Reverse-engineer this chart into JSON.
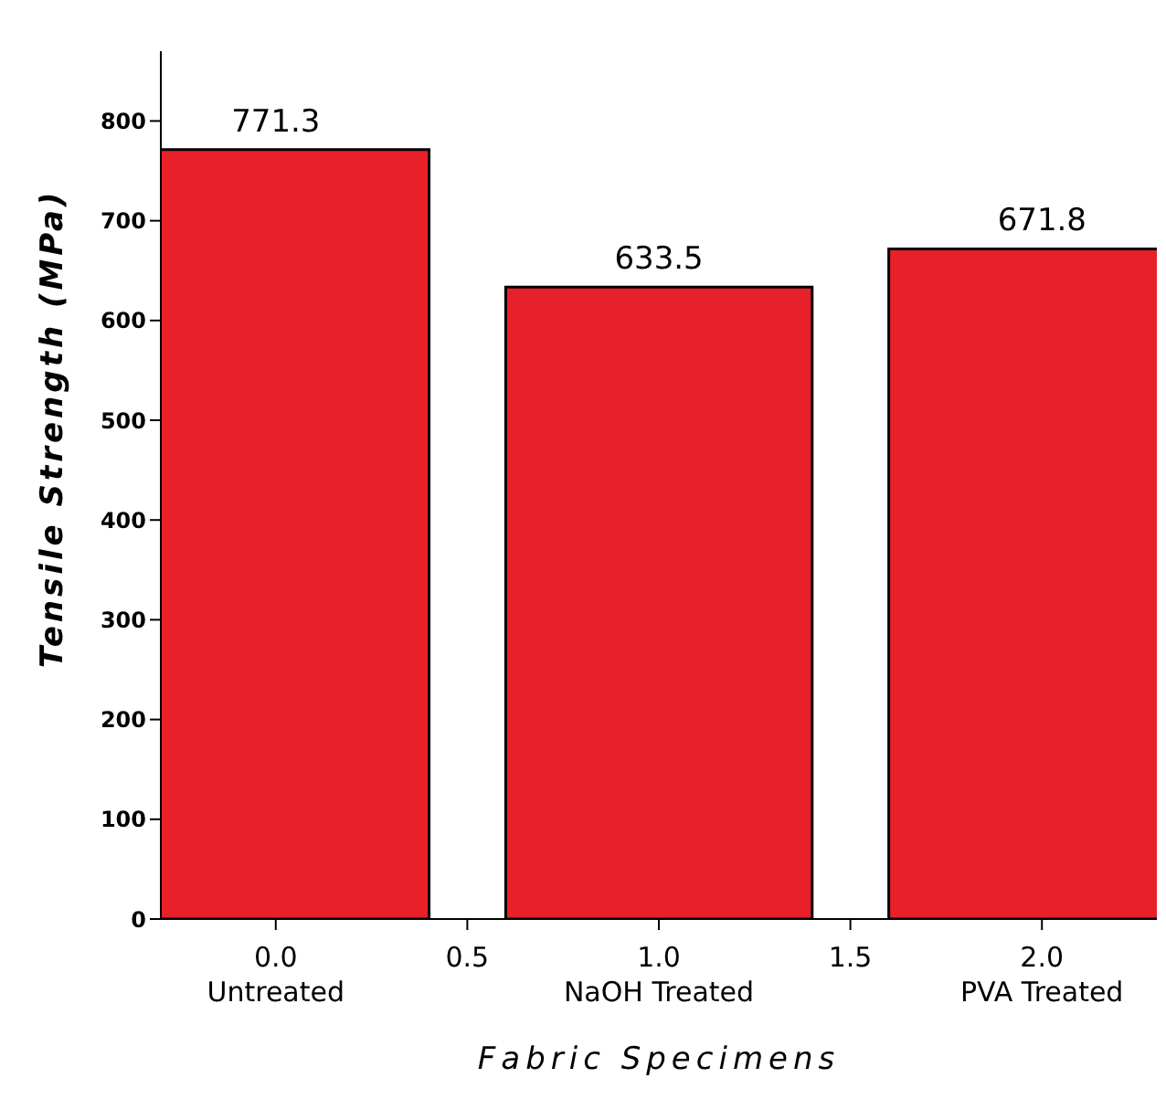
{
  "chart_data": {
    "type": "bar",
    "xlabel": "Fabric Specimens",
    "ylabel": "Tensile Strength (MPa)",
    "x": [
      0,
      1,
      2
    ],
    "series": [
      {
        "color": "#e8202a",
        "values": [
          771.3,
          633.5,
          671.8
        ]
      }
    ],
    "data_labels": true,
    "xlim": [
      -0.3,
      2.3
    ],
    "xticks": [
      {
        "value": 0,
        "label": "0.0\nUntreated"
      },
      {
        "value": 0.5,
        "label": "0.5"
      },
      {
        "value": 1,
        "label": "1.0\nNaOH Treated"
      },
      {
        "value": 1.5,
        "label": "1.5"
      },
      {
        "value": 2,
        "label": "2.0\nPVA Treated"
      }
    ],
    "ylim": [
      0,
      870
    ],
    "yticks": [
      0,
      100,
      200,
      300,
      400,
      500,
      600,
      700,
      800
    ],
    "grid": false,
    "legend": false
  }
}
